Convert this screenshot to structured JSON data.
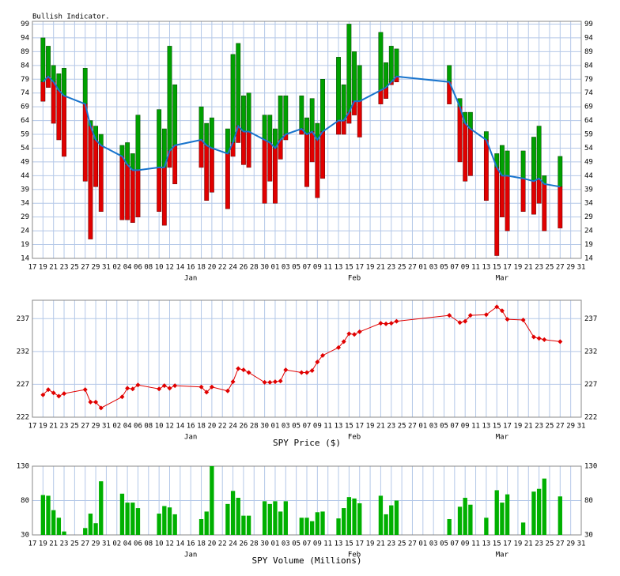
{
  "chart_data": [
    {
      "type": "indicator",
      "title": "Bullish Indicator.",
      "x": [
        2,
        3,
        4,
        5,
        6,
        10,
        11,
        12,
        13,
        17,
        18,
        19,
        20,
        24,
        25,
        26,
        27,
        32,
        33,
        34,
        37,
        38,
        39,
        40,
        41,
        44,
        45,
        46,
        47,
        48,
        51,
        52,
        53,
        54,
        55,
        58,
        59,
        60,
        61,
        62,
        66,
        67,
        68,
        69,
        79,
        81,
        82,
        83,
        86,
        88,
        89,
        90,
        93,
        95,
        96,
        97,
        100
      ],
      "series": [
        {
          "color": "#00a000",
          "values": [
            94,
            91,
            84,
            81,
            83,
            83,
            64,
            62,
            59,
            55,
            56,
            52,
            66,
            68,
            61,
            91,
            77,
            69,
            63,
            65,
            61,
            88,
            92,
            73,
            74,
            66,
            66,
            61,
            73,
            73,
            73,
            65,
            72,
            63,
            79,
            87,
            77,
            99,
            89,
            84,
            96,
            85,
            91,
            90,
            84,
            72,
            67,
            67,
            60,
            52,
            55,
            53,
            53,
            58,
            62,
            44,
            51
          ]
        },
        {
          "color": "#e00000",
          "values": [
            71,
            76,
            63,
            57,
            51,
            42,
            21,
            40,
            31,
            28,
            28,
            27,
            29,
            31,
            26,
            47,
            41,
            47,
            35,
            38,
            32,
            51,
            56,
            48,
            47,
            34,
            42,
            34,
            50,
            57,
            59,
            40,
            49,
            36,
            43,
            59,
            59,
            63,
            66,
            58,
            70,
            72,
            77,
            78,
            70,
            49,
            42,
            44,
            35,
            15,
            29,
            24,
            31,
            30,
            34,
            24,
            25
          ]
        },
        {
          "color": "#1874cd",
          "values": [
            78,
            80,
            78,
            75,
            73,
            70,
            62,
            57,
            55,
            51,
            48,
            46,
            46,
            47,
            47,
            53,
            55,
            57,
            55,
            54,
            52,
            56,
            62,
            60,
            60,
            57,
            56,
            54,
            57,
            59,
            61,
            59,
            60,
            57,
            60,
            64,
            64,
            67,
            71,
            71,
            75,
            76,
            78,
            80,
            78,
            69,
            63,
            61,
            57,
            47,
            44,
            44,
            43,
            42,
            43,
            41,
            40
          ]
        }
      ],
      "xlim": [
        0,
        104
      ],
      "ylim": [
        14,
        100
      ],
      "yticks": [
        14,
        19,
        24,
        29,
        34,
        39,
        44,
        49,
        54,
        59,
        64,
        69,
        74,
        79,
        84,
        89,
        94,
        99
      ],
      "xticks": [
        {
          "value": 0,
          "label": "17"
        },
        {
          "value": 2,
          "label": "19"
        },
        {
          "value": 4,
          "label": "21"
        },
        {
          "value": 6,
          "label": "23"
        },
        {
          "value": 8,
          "label": "25"
        },
        {
          "value": 10,
          "label": "27"
        },
        {
          "value": 12,
          "label": "29"
        },
        {
          "value": 14,
          "label": "31"
        },
        {
          "value": 16,
          "label": "02"
        },
        {
          "value": 18,
          "label": "04"
        },
        {
          "value": 20,
          "label": "06"
        },
        {
          "value": 22,
          "label": "08"
        },
        {
          "value": 24,
          "label": "10"
        },
        {
          "value": 26,
          "label": "12"
        },
        {
          "value": 28,
          "label": "14"
        },
        {
          "value": 30,
          "label": "16"
        },
        {
          "value": 32,
          "label": "18"
        },
        {
          "value": 34,
          "label": "20"
        },
        {
          "value": 36,
          "label": "22"
        },
        {
          "value": 38,
          "label": "24"
        },
        {
          "value": 40,
          "label": "26"
        },
        {
          "value": 42,
          "label": "28"
        },
        {
          "value": 44,
          "label": "30"
        },
        {
          "value": 46,
          "label": "01"
        },
        {
          "value": 48,
          "label": "03"
        },
        {
          "value": 50,
          "label": "05"
        },
        {
          "value": 52,
          "label": "07"
        },
        {
          "value": 54,
          "label": "09"
        },
        {
          "value": 56,
          "label": "11"
        },
        {
          "value": 58,
          "label": "13"
        },
        {
          "value": 60,
          "label": "15"
        },
        {
          "value": 62,
          "label": "17"
        },
        {
          "value": 64,
          "label": "19"
        },
        {
          "value": 66,
          "label": "21"
        },
        {
          "value": 68,
          "label": "23"
        },
        {
          "value": 70,
          "label": "25"
        },
        {
          "value": 72,
          "label": "27"
        },
        {
          "value": 74,
          "label": "01"
        },
        {
          "value": 76,
          "label": "03"
        },
        {
          "value": 78,
          "label": "05"
        },
        {
          "value": 80,
          "label": "07"
        },
        {
          "value": 82,
          "label": "09"
        },
        {
          "value": 84,
          "label": "11"
        },
        {
          "value": 86,
          "label": "13"
        },
        {
          "value": 88,
          "label": "15"
        },
        {
          "value": 90,
          "label": "17"
        },
        {
          "value": 92,
          "label": "19"
        },
        {
          "value": 94,
          "label": "21"
        },
        {
          "value": 96,
          "label": "23"
        },
        {
          "value": 98,
          "label": "25"
        },
        {
          "value": 100,
          "label": "27"
        },
        {
          "value": 102,
          "label": "29"
        },
        {
          "value": 104,
          "label": "31"
        }
      ],
      "month_labels": [
        {
          "value": 30,
          "label": "Jan"
        },
        {
          "value": 61,
          "label": "Feb"
        },
        {
          "value": 89,
          "label": "Mar"
        }
      ],
      "grid": true
    },
    {
      "type": "line",
      "x_label": "SPY Price ($)",
      "x": [
        2,
        3,
        4,
        5,
        6,
        10,
        11,
        12,
        13,
        17,
        18,
        19,
        20,
        24,
        25,
        26,
        27,
        32,
        33,
        34,
        37,
        38,
        39,
        40,
        41,
        44,
        45,
        46,
        47,
        48,
        51,
        52,
        53,
        54,
        55,
        58,
        59,
        60,
        61,
        62,
        66,
        67,
        68,
        69,
        79,
        81,
        82,
        83,
        86,
        88,
        89,
        90,
        93,
        95,
        96,
        97,
        100
      ],
      "series": [
        {
          "color": "#e00000",
          "values": [
            225.4,
            226.2,
            225.7,
            225.2,
            225.6,
            226.2,
            224.3,
            224.3,
            223.4,
            225.1,
            226.4,
            226.3,
            226.9,
            226.3,
            226.8,
            226.4,
            226.8,
            226.6,
            225.8,
            226.6,
            226.0,
            227.4,
            229.4,
            229.2,
            228.8,
            227.3,
            227.3,
            227.4,
            227.5,
            229.2,
            228.8,
            228.8,
            229.1,
            230.4,
            231.4,
            232.6,
            233.5,
            234.7,
            234.6,
            235.0,
            236.3,
            236.2,
            236.3,
            236.6,
            237.5,
            236.4,
            236.6,
            237.5,
            237.6,
            238.8,
            238.2,
            236.9,
            236.8,
            234.2,
            234.0,
            233.8,
            233.5
          ]
        }
      ],
      "xlim": [
        0,
        104
      ],
      "ylim": [
        222,
        239.8
      ],
      "yticks": [
        222,
        227,
        232,
        237
      ],
      "xticks": [
        {
          "value": 0,
          "label": "17"
        },
        {
          "value": 2,
          "label": "19"
        },
        {
          "value": 4,
          "label": "21"
        },
        {
          "value": 6,
          "label": "23"
        },
        {
          "value": 8,
          "label": "25"
        },
        {
          "value": 10,
          "label": "27"
        },
        {
          "value": 12,
          "label": "29"
        },
        {
          "value": 14,
          "label": "31"
        },
        {
          "value": 16,
          "label": "02"
        },
        {
          "value": 18,
          "label": "04"
        },
        {
          "value": 20,
          "label": "06"
        },
        {
          "value": 22,
          "label": "08"
        },
        {
          "value": 24,
          "label": "10"
        },
        {
          "value": 26,
          "label": "12"
        },
        {
          "value": 28,
          "label": "14"
        },
        {
          "value": 30,
          "label": "16"
        },
        {
          "value": 32,
          "label": "18"
        },
        {
          "value": 34,
          "label": "20"
        },
        {
          "value": 36,
          "label": "22"
        },
        {
          "value": 38,
          "label": "24"
        },
        {
          "value": 40,
          "label": "26"
        },
        {
          "value": 42,
          "label": "28"
        },
        {
          "value": 44,
          "label": "30"
        },
        {
          "value": 46,
          "label": "01"
        },
        {
          "value": 48,
          "label": "03"
        },
        {
          "value": 50,
          "label": "05"
        },
        {
          "value": 52,
          "label": "07"
        },
        {
          "value": 54,
          "label": "09"
        },
        {
          "value": 56,
          "label": "11"
        },
        {
          "value": 58,
          "label": "13"
        },
        {
          "value": 60,
          "label": "15"
        },
        {
          "value": 62,
          "label": "17"
        },
        {
          "value": 64,
          "label": "19"
        },
        {
          "value": 66,
          "label": "21"
        },
        {
          "value": 68,
          "label": "23"
        },
        {
          "value": 70,
          "label": "25"
        },
        {
          "value": 72,
          "label": "27"
        },
        {
          "value": 74,
          "label": "01"
        },
        {
          "value": 76,
          "label": "03"
        },
        {
          "value": 78,
          "label": "05"
        },
        {
          "value": 80,
          "label": "07"
        },
        {
          "value": 82,
          "label": "09"
        },
        {
          "value": 84,
          "label": "11"
        },
        {
          "value": 86,
          "label": "13"
        },
        {
          "value": 88,
          "label": "15"
        },
        {
          "value": 90,
          "label": "17"
        },
        {
          "value": 92,
          "label": "19"
        },
        {
          "value": 94,
          "label": "21"
        },
        {
          "value": 96,
          "label": "23"
        },
        {
          "value": 98,
          "label": "25"
        },
        {
          "value": 100,
          "label": "27"
        },
        {
          "value": 102,
          "label": "29"
        },
        {
          "value": 104,
          "label": "31"
        }
      ],
      "month_labels": [
        {
          "value": 30,
          "label": "Jan"
        },
        {
          "value": 61,
          "label": "Feb"
        },
        {
          "value": 89,
          "label": "Mar"
        }
      ],
      "grid": true
    },
    {
      "type": "bar",
      "x_label": "SPY Volume (Millions)",
      "x": [
        2,
        3,
        4,
        5,
        6,
        10,
        11,
        12,
        13,
        17,
        18,
        19,
        20,
        24,
        25,
        26,
        27,
        32,
        33,
        34,
        37,
        38,
        39,
        40,
        41,
        44,
        45,
        46,
        47,
        48,
        51,
        52,
        53,
        54,
        55,
        58,
        59,
        60,
        61,
        62,
        66,
        67,
        68,
        69,
        79,
        81,
        82,
        83,
        86,
        88,
        89,
        90,
        93,
        95,
        96,
        97,
        100
      ],
      "series": [
        {
          "color": "#00b000",
          "values": [
            88,
            87,
            66,
            55,
            35,
            40,
            61,
            47,
            108,
            90,
            77,
            77,
            69,
            61,
            72,
            70,
            60,
            53,
            64,
            130,
            75,
            94,
            84,
            58,
            58,
            79,
            75,
            79,
            64,
            79,
            55,
            55,
            50,
            63,
            64,
            54,
            69,
            85,
            83,
            76,
            87,
            60,
            73,
            80,
            53,
            71,
            84,
            74,
            55,
            95,
            77,
            89,
            48,
            93,
            97,
            112,
            86
          ]
        }
      ],
      "xlim": [
        0,
        104
      ],
      "ylim": [
        30,
        130
      ],
      "yticks": [
        30,
        80,
        130
      ],
      "xticks": [
        {
          "value": 0,
          "label": "17"
        },
        {
          "value": 2,
          "label": "19"
        },
        {
          "value": 4,
          "label": "21"
        },
        {
          "value": 6,
          "label": "23"
        },
        {
          "value": 8,
          "label": "25"
        },
        {
          "value": 10,
          "label": "27"
        },
        {
          "value": 12,
          "label": "29"
        },
        {
          "value": 14,
          "label": "31"
        },
        {
          "value": 16,
          "label": "02"
        },
        {
          "value": 18,
          "label": "04"
        },
        {
          "value": 20,
          "label": "06"
        },
        {
          "value": 22,
          "label": "08"
        },
        {
          "value": 24,
          "label": "10"
        },
        {
          "value": 26,
          "label": "12"
        },
        {
          "value": 28,
          "label": "14"
        },
        {
          "value": 30,
          "label": "16"
        },
        {
          "value": 32,
          "label": "18"
        },
        {
          "value": 34,
          "label": "20"
        },
        {
          "value": 36,
          "label": "22"
        },
        {
          "value": 38,
          "label": "24"
        },
        {
          "value": 40,
          "label": "26"
        },
        {
          "value": 42,
          "label": "28"
        },
        {
          "value": 44,
          "label": "30"
        },
        {
          "value": 46,
          "label": "01"
        },
        {
          "value": 48,
          "label": "03"
        },
        {
          "value": 50,
          "label": "05"
        },
        {
          "value": 52,
          "label": "07"
        },
        {
          "value": 54,
          "label": "09"
        },
        {
          "value": 56,
          "label": "11"
        },
        {
          "value": 58,
          "label": "13"
        },
        {
          "value": 60,
          "label": "15"
        },
        {
          "value": 62,
          "label": "17"
        },
        {
          "value": 64,
          "label": "19"
        },
        {
          "value": 66,
          "label": "21"
        },
        {
          "value": 68,
          "label": "23"
        },
        {
          "value": 70,
          "label": "25"
        },
        {
          "value": 72,
          "label": "27"
        },
        {
          "value": 74,
          "label": "01"
        },
        {
          "value": 76,
          "label": "03"
        },
        {
          "value": 78,
          "label": "05"
        },
        {
          "value": 80,
          "label": "07"
        },
        {
          "value": 82,
          "label": "09"
        },
        {
          "value": 84,
          "label": "11"
        },
        {
          "value": 86,
          "label": "13"
        },
        {
          "value": 88,
          "label": "15"
        },
        {
          "value": 90,
          "label": "17"
        },
        {
          "value": 92,
          "label": "19"
        },
        {
          "value": 94,
          "label": "21"
        },
        {
          "value": 96,
          "label": "23"
        },
        {
          "value": 98,
          "label": "25"
        },
        {
          "value": 100,
          "label": "27"
        },
        {
          "value": 102,
          "label": "29"
        },
        {
          "value": 104,
          "label": "31"
        }
      ],
      "month_labels": [
        {
          "value": 30,
          "label": "Jan"
        },
        {
          "value": 61,
          "label": "Feb"
        },
        {
          "value": 89,
          "label": "Mar"
        }
      ],
      "grid": true
    }
  ]
}
